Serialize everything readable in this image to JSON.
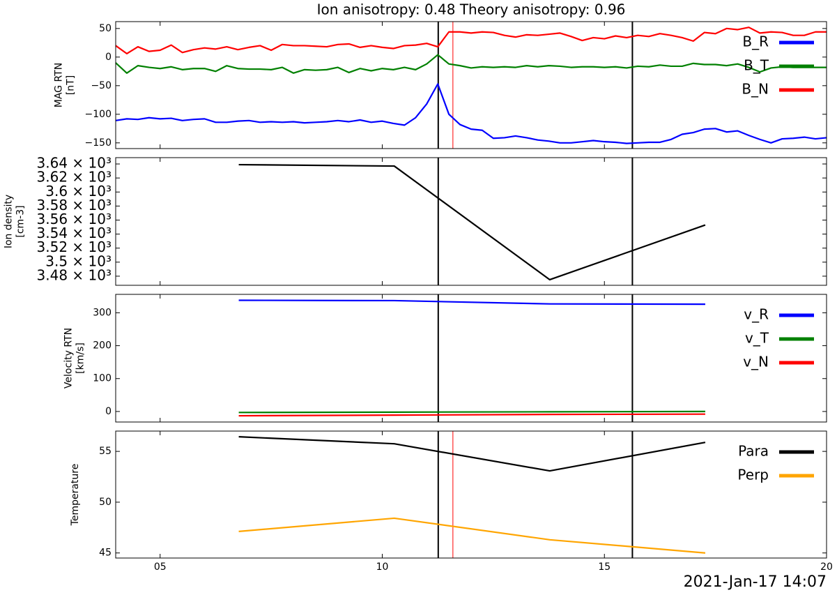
{
  "chart_data": [
    {
      "type": "line",
      "title": "Ion anisotropy: 0.48 Theory anisotropy: 0.96",
      "ylabel": [
        "MAG RTN",
        "[nT]"
      ],
      "x": [
        4,
        4.25,
        4.5,
        4.75,
        5,
        5.25,
        5.5,
        5.75,
        6,
        6.25,
        6.5,
        6.75,
        7,
        7.25,
        7.5,
        7.75,
        8,
        8.25,
        8.5,
        8.75,
        9,
        9.25,
        9.5,
        9.75,
        10,
        10.25,
        10.5,
        10.75,
        11,
        11.25,
        11.5,
        11.75,
        12,
        12.25,
        12.5,
        12.75,
        13,
        13.25,
        13.5,
        13.75,
        14,
        14.25,
        14.5,
        14.75,
        15,
        15.25,
        15.5,
        15.75,
        16,
        16.25,
        16.5,
        16.75,
        17,
        17.25,
        17.5,
        17.75,
        18,
        18.25,
        18.5,
        18.75,
        19,
        19.25,
        19.5,
        19.75,
        20
      ],
      "series": [
        {
          "name": "B_R",
          "color": "#0000ff",
          "values": [
            -111,
            -108,
            -109,
            -106,
            -108,
            -107,
            -111,
            -109,
            -108,
            -114,
            -114,
            -112,
            -111,
            -114,
            -113,
            -114,
            -113,
            -115,
            -114,
            -113,
            -111,
            -113,
            -110,
            -114,
            -112,
            -116,
            -119,
            -106,
            -82,
            -47,
            -100,
            -118,
            -126,
            -128,
            -142,
            -141,
            -138,
            -141,
            -145,
            -147,
            -150,
            -150,
            -148,
            -146,
            -148,
            -149,
            -151,
            -150,
            -149,
            -149,
            -144,
            -135,
            -132,
            -126,
            -125,
            -131,
            -129,
            -137,
            -144,
            -150,
            -143,
            -142,
            -140,
            -143,
            -141
          ]
        },
        {
          "name": "B_T",
          "color": "#008000",
          "values": [
            -10,
            -28,
            -15,
            -18,
            -20,
            -17,
            -22,
            -20,
            -20,
            -25,
            -15,
            -20,
            -21,
            -21,
            -22,
            -18,
            -28,
            -22,
            -23,
            -22,
            -18,
            -27,
            -20,
            -24,
            -20,
            -22,
            -18,
            -22,
            -12,
            4,
            -12,
            -15,
            -19,
            -17,
            -18,
            -17,
            -18,
            -15,
            -17,
            -15,
            -16,
            -18,
            -17,
            -17,
            -18,
            -17,
            -19,
            -16,
            -17,
            -14,
            -16,
            -16,
            -11,
            -13,
            -13,
            -15,
            -12,
            -18,
            -26,
            -19,
            -17,
            -18,
            -18,
            -18,
            -18
          ]
        },
        {
          "name": "B_N",
          "color": "#ff0000",
          "values": [
            20,
            6,
            18,
            10,
            12,
            21,
            8,
            13,
            16,
            14,
            18,
            13,
            17,
            20,
            12,
            22,
            20,
            20,
            19,
            18,
            22,
            23,
            17,
            20,
            17,
            15,
            20,
            21,
            24,
            18,
            44,
            44,
            42,
            44,
            43,
            38,
            35,
            39,
            38,
            40,
            42,
            36,
            29,
            34,
            32,
            37,
            34,
            38,
            36,
            41,
            38,
            34,
            28,
            43,
            41,
            50,
            48,
            52,
            42,
            44,
            43,
            38,
            38,
            44,
            44
          ]
        }
      ],
      "xlim": [
        4,
        20
      ],
      "xticks": [
        {
          "value": 5,
          "label": "05"
        },
        10,
        15,
        20
      ],
      "xticklabels": false,
      "ylim": [
        -160,
        62
      ],
      "yticks": [
        {
          "value": -150,
          "label": "−150"
        },
        {
          "value": -100,
          "label": "−100"
        },
        {
          "value": -50,
          "label": "−50"
        },
        0,
        50
      ],
      "vlines": [
        {
          "value": 11.26,
          "color": "#000000"
        },
        {
          "value": 11.59,
          "color": "#ff0000"
        },
        {
          "value": 15.63,
          "color": "#000000"
        }
      ],
      "legend": "upper right"
    },
    {
      "type": "line",
      "ylabel": [
        "Ion density",
        "[cm-3]"
      ],
      "x": [
        6.77,
        10.27,
        13.77,
        17.27
      ],
      "series": [
        {
          "color": "#000000",
          "values": [
            3639,
            3637,
            3475,
            3553
          ]
        }
      ],
      "xlim": [
        4,
        20
      ],
      "xticks": [
        {
          "value": 5,
          "label": "05"
        },
        10,
        15,
        20
      ],
      "xticklabels": false,
      "ylim": [
        3467,
        3649
      ],
      "yticks": [
        {
          "value": 3480,
          "label": "3.48 × 10³"
        },
        {
          "value": 3500,
          "label": "3.5 × 10³"
        },
        {
          "value": 3520,
          "label": "3.52 × 10³"
        },
        {
          "value": 3540,
          "label": "3.54 × 10³"
        },
        {
          "value": 3560,
          "label": "3.56 × 10³"
        },
        {
          "value": 3580,
          "label": "3.58 × 10³"
        },
        {
          "value": 3600,
          "label": "3.6 × 10³"
        },
        {
          "value": 3620,
          "label": "3.62 × 10³"
        },
        {
          "value": 3640,
          "label": "3.64 × 10³"
        }
      ],
      "vlines": [
        {
          "value": 11.26,
          "color": "#000000"
        },
        {
          "value": 15.63,
          "color": "#000000"
        }
      ]
    },
    {
      "type": "line",
      "ylabel": [
        "Velocity RTN",
        "[km/s]"
      ],
      "x": [
        6.77,
        10.27,
        13.77,
        17.27
      ],
      "series": [
        {
          "name": "v_R",
          "color": "#0000ff",
          "values": [
            338,
            337,
            327,
            326
          ]
        },
        {
          "name": "v_T",
          "color": "#008000",
          "values": [
            -3,
            -2,
            -1,
            0
          ]
        },
        {
          "name": "v_N",
          "color": "#ff0000",
          "values": [
            -13,
            -11,
            -9,
            -8
          ]
        }
      ],
      "xlim": [
        4,
        20
      ],
      "xticks": [
        {
          "value": 5,
          "label": "05"
        },
        10,
        15,
        20
      ],
      "xticklabels": false,
      "ylim": [
        -32,
        356
      ],
      "yticks": [
        0,
        100,
        200,
        300
      ],
      "vlines": [
        {
          "value": 11.26,
          "color": "#000000"
        },
        {
          "value": 15.63,
          "color": "#000000"
        }
      ],
      "legend": "upper right"
    },
    {
      "type": "line",
      "ylabel": [
        "Temperature"
      ],
      "xlabel": "2021-Jan-17 14:07",
      "x": [
        6.77,
        10.27,
        13.77,
        17.27
      ],
      "series": [
        {
          "name": "Para",
          "color": "#000000",
          "values": [
            56.44,
            55.75,
            53.08,
            55.89
          ]
        },
        {
          "name": "Perp",
          "color": "#ffa500",
          "values": [
            47.12,
            48.42,
            46.3,
            45.0
          ]
        }
      ],
      "xlim": [
        4,
        20
      ],
      "xticks": [
        {
          "value": 5,
          "label": "05"
        },
        10,
        15,
        20
      ],
      "xticklabels": true,
      "ylim": [
        44.5,
        57
      ],
      "yticks": [
        45,
        50,
        55
      ],
      "vlines": [
        {
          "value": 11.26,
          "color": "#000000"
        },
        {
          "value": 11.59,
          "color": "#ff0000"
        },
        {
          "value": 15.63,
          "color": "#000000"
        }
      ],
      "legend": "upper right"
    }
  ]
}
